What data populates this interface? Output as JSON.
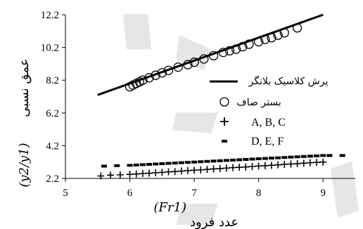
{
  "chart_data": {
    "type": "scatter",
    "xlim": [
      5,
      9.5
    ],
    "ylim": [
      2.2,
      12.2
    ],
    "xticks": [
      "5",
      "6",
      "7",
      "8",
      "9"
    ],
    "yticks": [
      "2.2",
      "4.2",
      "6.2",
      "8.2",
      "10.2",
      "12.2"
    ],
    "ylabel_prefix": "عمق نسبی",
    "ylabel_math": "(y2/y1)",
    "xlabel_math": "(Fr1)",
    "xlabel_suffix": "عدد فرود",
    "grid": false,
    "legend_position": "right",
    "series": [
      {
        "name": "پرش کلاسیک بلانگر",
        "marker": "line",
        "x": [
          5.5,
          9.0
        ],
        "y": [
          7.3,
          12.2
        ]
      },
      {
        "name": "بستر صاف",
        "marker": "circle",
        "x": [
          6.0,
          6.05,
          6.1,
          6.15,
          6.2,
          6.3,
          6.4,
          6.5,
          6.6,
          6.75,
          6.9,
          7.0,
          7.15,
          7.3,
          7.45,
          7.55,
          7.65,
          7.75,
          7.85,
          8.0,
          8.1,
          8.2,
          8.3,
          8.4,
          8.6
        ],
        "y": [
          7.8,
          7.9,
          8.0,
          8.1,
          8.2,
          8.35,
          8.5,
          8.65,
          8.8,
          9.0,
          9.15,
          9.3,
          9.5,
          9.7,
          9.9,
          10.0,
          10.1,
          10.25,
          10.4,
          10.55,
          10.7,
          10.8,
          10.95,
          11.1,
          11.4
        ]
      },
      {
        "name": "A, B, C",
        "marker": "plus",
        "x": [
          5.55,
          5.7,
          5.85,
          6.0,
          6.1,
          6.2,
          6.3,
          6.4,
          6.5,
          6.6,
          6.7,
          6.8,
          6.9,
          7.0,
          7.1,
          7.2,
          7.3,
          7.4,
          7.5,
          7.6,
          7.7,
          7.8,
          7.9,
          8.0,
          8.1,
          8.2,
          8.3,
          8.4,
          8.5,
          8.6,
          8.7,
          8.8,
          8.9,
          9.0
        ],
        "y": [
          2.35,
          2.4,
          2.42,
          2.45,
          2.47,
          2.5,
          2.52,
          2.55,
          2.57,
          2.6,
          2.62,
          2.65,
          2.68,
          2.7,
          2.72,
          2.75,
          2.78,
          2.8,
          2.83,
          2.86,
          2.88,
          2.9,
          2.93,
          2.96,
          2.98,
          3.0,
          3.03,
          3.06,
          3.08,
          3.1,
          3.13,
          3.16,
          3.18,
          3.2
        ]
      },
      {
        "name": "D, E, F",
        "marker": "dash",
        "x": [
          5.6,
          5.8,
          6.0,
          6.1,
          6.2,
          6.3,
          6.4,
          6.5,
          6.6,
          6.7,
          6.8,
          6.9,
          7.0,
          7.1,
          7.2,
          7.3,
          7.4,
          7.5,
          7.6,
          7.7,
          7.8,
          7.9,
          8.0,
          8.1,
          8.2,
          8.3,
          8.4,
          8.5,
          8.6,
          8.7,
          8.8,
          8.9,
          9.0,
          9.1,
          9.3
        ],
        "y": [
          2.95,
          2.98,
          3.0,
          3.02,
          3.04,
          3.06,
          3.08,
          3.1,
          3.12,
          3.14,
          3.16,
          3.18,
          3.2,
          3.22,
          3.24,
          3.26,
          3.28,
          3.3,
          3.32,
          3.34,
          3.36,
          3.38,
          3.4,
          3.42,
          3.44,
          3.46,
          3.48,
          3.5,
          3.52,
          3.54,
          3.56,
          3.58,
          3.6,
          3.6,
          3.6
        ]
      }
    ]
  }
}
